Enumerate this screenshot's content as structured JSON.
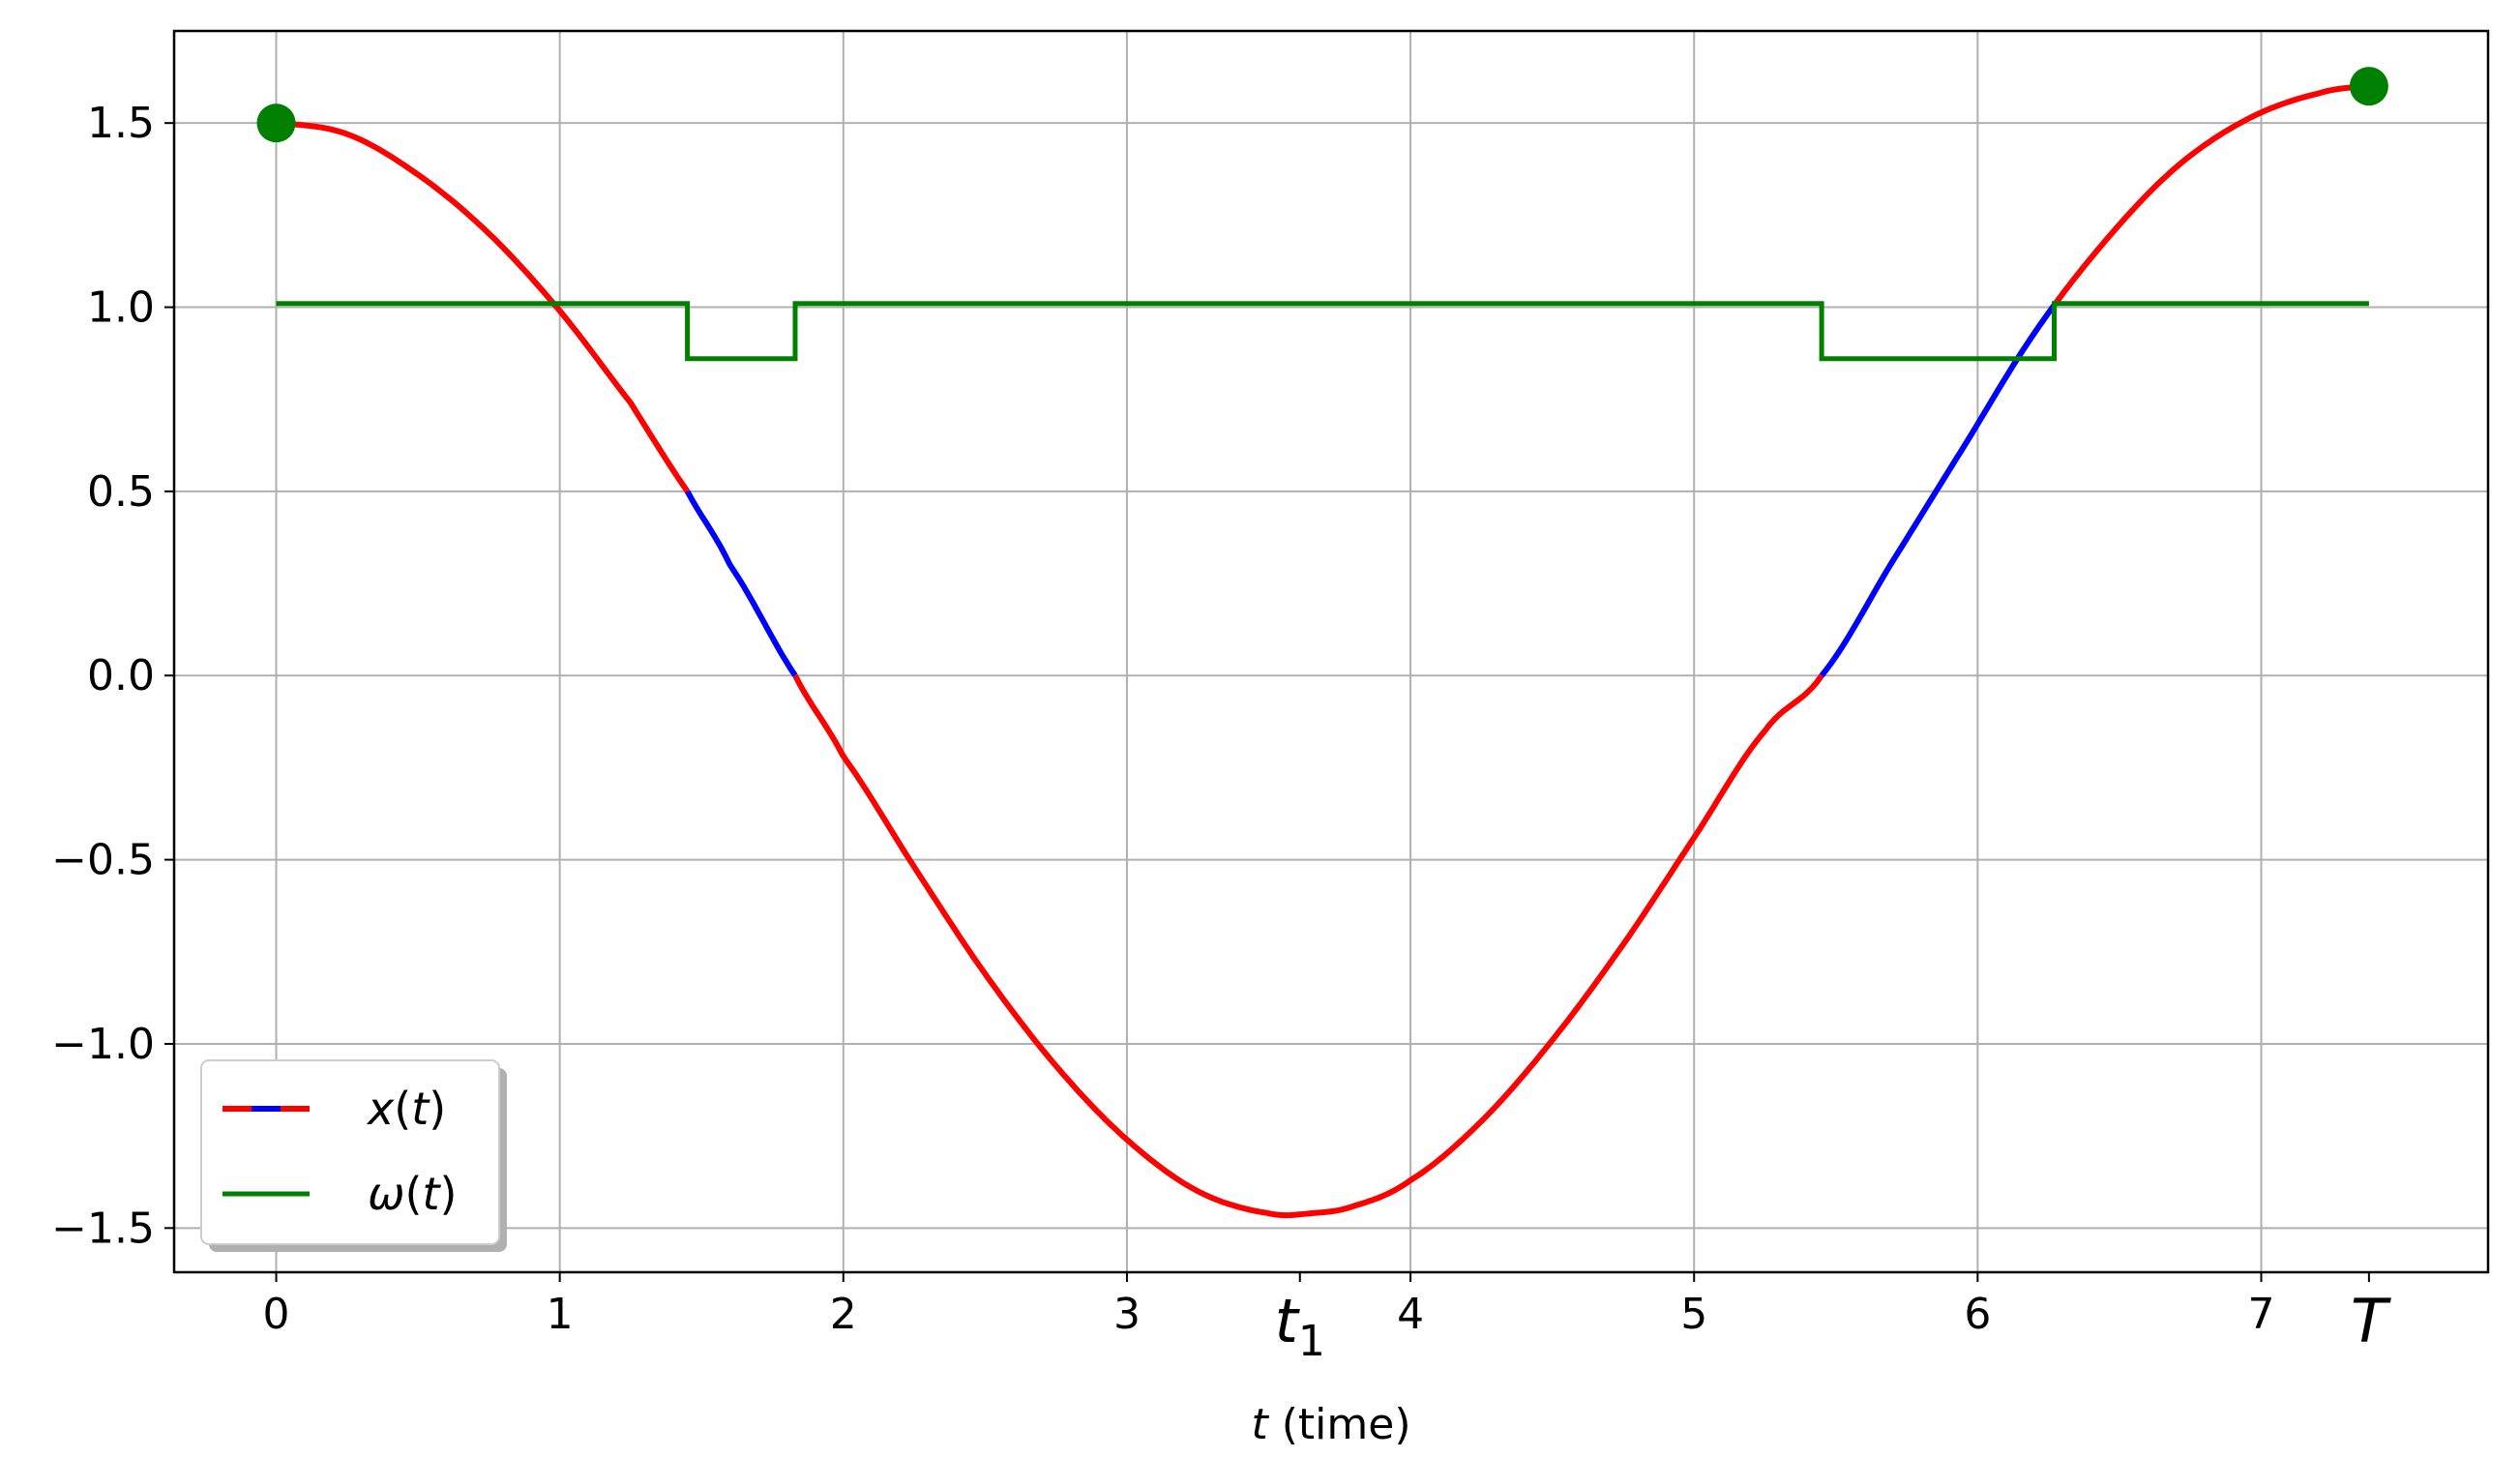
{
  "chart_data": {
    "type": "line",
    "xlabel_var": "t",
    "xlabel_rest": " (time)",
    "xlim": [
      -0.36,
      7.8
    ],
    "ylim": [
      -1.62,
      1.75
    ],
    "x_ticks": [
      0,
      1,
      2,
      3,
      4,
      5,
      6,
      7
    ],
    "x_tick_labels": [
      "0",
      "1",
      "2",
      "3",
      "4",
      "5",
      "6",
      "7"
    ],
    "y_ticks": [
      1.5,
      1.0,
      0.5,
      0.0,
      -0.5,
      -1.0,
      -1.5
    ],
    "y_tick_labels": [
      "1.5",
      "1.0",
      "0.5",
      "0.0",
      "−0.5",
      "−1.0",
      "−1.5"
    ],
    "special_ticks": [
      {
        "x": 3.61,
        "label": "t",
        "subscript": "1"
      },
      {
        "x": 7.38,
        "label": "T",
        "subscript": ""
      }
    ],
    "grid": true,
    "legend_position": "lower-left",
    "series": [
      {
        "name": "x(t)",
        "kind": "curve",
        "colors": {
          "normal": "#ff0000",
          "highlight": "#0000ff"
        },
        "x": [
          0,
          0.25,
          0.5,
          0.75,
          1.0,
          1.25,
          1.45,
          1.6,
          1.83,
          2.0,
          2.25,
          2.5,
          2.75,
          3.0,
          3.25,
          3.5,
          3.65,
          3.8,
          4.0,
          4.25,
          4.5,
          4.75,
          5.0,
          5.25,
          5.45,
          5.7,
          5.95,
          6.2,
          6.45,
          6.7,
          6.95,
          7.2,
          7.38
        ],
        "y": [
          1.5,
          1.47,
          1.36,
          1.2,
          0.99,
          0.74,
          0.5,
          0.3,
          0.0,
          -0.22,
          -0.52,
          -0.81,
          -1.06,
          -1.26,
          -1.4,
          -1.46,
          -1.46,
          -1.44,
          -1.37,
          -1.21,
          -0.99,
          -0.73,
          -0.44,
          -0.15,
          0.0,
          0.31,
          0.62,
          0.93,
          1.18,
          1.38,
          1.51,
          1.58,
          1.6
        ],
        "highlight_ranges": [
          [
            1.45,
            1.83
          ],
          [
            5.45,
            6.27
          ]
        ]
      },
      {
        "name": "ω(t)",
        "kind": "step",
        "color": "#008000",
        "x": [
          0,
          1.45,
          1.45,
          1.83,
          1.83,
          5.45,
          5.45,
          6.27,
          6.27,
          7.38
        ],
        "y": [
          1.01,
          1.01,
          0.86,
          0.86,
          1.01,
          1.01,
          0.86,
          0.86,
          1.01,
          1.01
        ]
      }
    ],
    "endpoints": [
      {
        "x": 0,
        "y": 1.5
      },
      {
        "x": 7.38,
        "y": 1.6
      }
    ],
    "endpoint_color": "#008000",
    "legend": [
      {
        "label_var": "x",
        "label_arg": "t",
        "series": "x(t)"
      },
      {
        "label_var": "ω",
        "label_arg": "t",
        "series": "ω(t)"
      }
    ]
  }
}
